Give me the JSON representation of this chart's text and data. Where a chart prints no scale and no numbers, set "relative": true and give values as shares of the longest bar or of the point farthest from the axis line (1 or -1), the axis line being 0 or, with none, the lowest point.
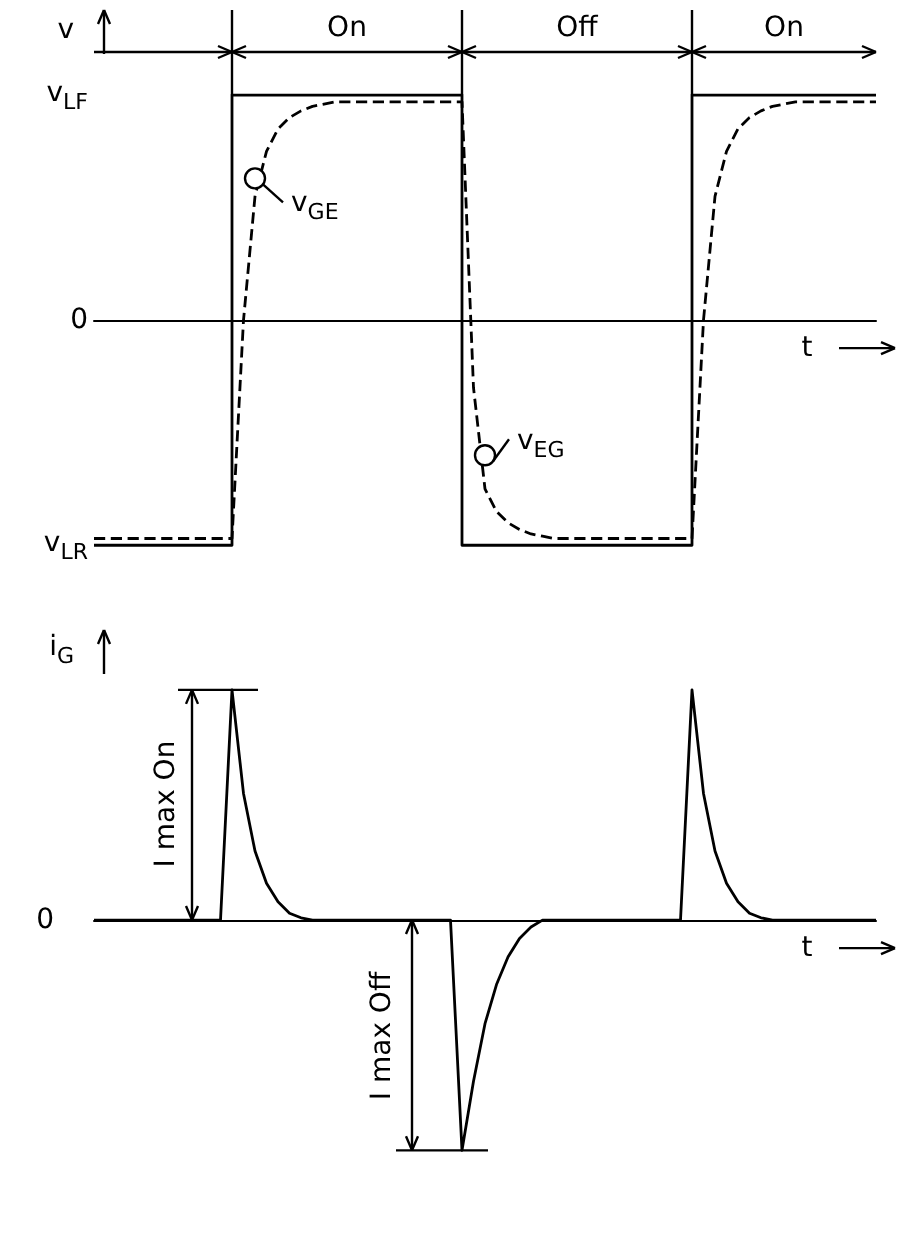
{
  "chart_data": [
    {
      "type": "line",
      "relative": true,
      "ylabel": "v",
      "xlabel": "t",
      "marker": "none",
      "categories": [
        null,
        null,
        null,
        null,
        null,
        null,
        null,
        null,
        null,
        null,
        null,
        null,
        null,
        null,
        null,
        null,
        null,
        null,
        null,
        null,
        null,
        null,
        null,
        null,
        null,
        null,
        null,
        null,
        null,
        null,
        null,
        null,
        null,
        null,
        null,
        null,
        null,
        null,
        null,
        null,
        null,
        null,
        null,
        null,
        null,
        null,
        null,
        null,
        null,
        null,
        null,
        null,
        null,
        null,
        null,
        null,
        null,
        null,
        null,
        null,
        null,
        null,
        null,
        null,
        null,
        null,
        null,
        null,
        null
      ],
      "series": [
        {
          "type": "step",
          "color": "#000000",
          "line_style": "solid",
          "values": [
            -1,
            -1,
            -1,
            -1,
            -1,
            -1,
            -1,
            -1,
            -1,
            -1,
            -1,
            -1,
            1,
            1,
            1,
            1,
            1,
            1,
            1,
            1,
            1,
            1,
            1,
            1,
            1,
            1,
            1,
            1,
            1,
            1,
            1,
            1,
            -1,
            -1,
            -1,
            -1,
            -1,
            -1,
            -1,
            -1,
            -1,
            -1,
            -1,
            -1,
            -1,
            -1,
            -1,
            -1,
            -1,
            -1,
            -1,
            -1,
            1,
            1,
            1,
            1,
            1,
            1,
            1,
            1,
            1,
            1,
            1,
            1,
            1,
            1,
            1,
            1,
            1
          ]
        },
        {
          "type": "line",
          "color": "#000000",
          "line_style": "dashed",
          "values": [
            -0.97,
            -0.97,
            -0.97,
            -0.97,
            -0.97,
            -0.97,
            -0.97,
            -0.97,
            -0.97,
            -0.97,
            -0.97,
            -0.97,
            -0.97,
            0,
            0.55,
            0.75,
            0.85,
            0.9,
            0.93,
            0.95,
            0.96,
            0.97,
            0.97,
            0.97,
            0.97,
            0.97,
            0.97,
            0.97,
            0.97,
            0.97,
            0.97,
            0.97,
            0.97,
            -0.3,
            -0.75,
            -0.85,
            -0.9,
            -0.93,
            -0.95,
            -0.96,
            -0.97,
            -0.97,
            -0.97,
            -0.97,
            -0.97,
            -0.97,
            -0.97,
            -0.97,
            -0.97,
            -0.97,
            -0.97,
            -0.97,
            -0.97,
            0,
            0.55,
            0.75,
            0.85,
            0.9,
            0.93,
            0.95,
            0.96,
            0.97,
            0.97,
            0.97,
            0.97,
            0.97,
            0.97,
            0.97,
            0.97
          ]
        }
      ],
      "annotations": [
        "On",
        "Off",
        "On",
        "v$_{LF}$",
        "0",
        "v$_{LR}$",
        "v$_{GE}$",
        "v$_{EG}$"
      ]
    },
    {
      "type": "line",
      "relative": true,
      "ylabel": "i$_{G}$",
      "xlabel": "t",
      "marker": "none",
      "categories": [
        null,
        null,
        null,
        null,
        null,
        null,
        null,
        null,
        null,
        null,
        null,
        null,
        null,
        null,
        null,
        null,
        null,
        null,
        null,
        null,
        null,
        null,
        null,
        null,
        null,
        null,
        null,
        null,
        null,
        null,
        null,
        null,
        null,
        null,
        null,
        null,
        null,
        null,
        null,
        null,
        null,
        null,
        null,
        null,
        null,
        null,
        null,
        null,
        null,
        null,
        null,
        null,
        null,
        null,
        null,
        null,
        null,
        null,
        null,
        null,
        null,
        null,
        null,
        null,
        null,
        null,
        null,
        null,
        null
      ],
      "series": [
        {
          "color": "#000000",
          "line_style": "solid",
          "values": [
            0,
            0,
            0,
            0,
            0,
            0,
            0,
            0,
            0,
            0,
            0,
            0,
            1,
            0.55,
            0.3,
            0.16,
            0.08,
            0.03,
            0.01,
            0,
            0,
            0,
            0,
            0,
            0,
            0,
            0,
            0,
            0,
            0,
            0,
            0,
            -1,
            -0.7,
            -0.45,
            -0.28,
            -0.16,
            -0.08,
            -0.03,
            0,
            0,
            0,
            0,
            0,
            0,
            0,
            0,
            0,
            0,
            0,
            0,
            0,
            1,
            0.55,
            0.3,
            0.16,
            0.08,
            0.03,
            0.01,
            0,
            0,
            0,
            0,
            0,
            0,
            0,
            0,
            0,
            0
          ]
        }
      ],
      "annotations": [
        "0",
        "I max On",
        "I max Off"
      ]
    }
  ]
}
